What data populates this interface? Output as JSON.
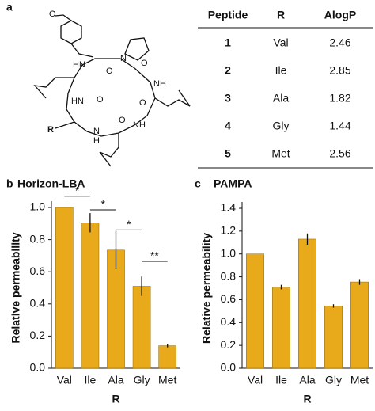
{
  "panels": [
    "a",
    "b",
    "c"
  ],
  "structure": {
    "labels": [
      "O",
      "HN",
      "N",
      "O",
      "O",
      "NH",
      "HN",
      "O",
      "O",
      "NH",
      "R",
      "N",
      "H",
      "O"
    ]
  },
  "table": {
    "header": [
      "Peptide",
      "R",
      "AlogP"
    ],
    "rows": [
      [
        1,
        "Val",
        2.46
      ],
      [
        2,
        "Ile",
        2.85
      ],
      [
        3,
        "Ala",
        1.82
      ],
      [
        4,
        "Gly",
        1.44
      ],
      [
        5,
        "Met",
        2.56
      ]
    ]
  },
  "chart_data": [
    {
      "type": "bar",
      "title": "Horizon-LBA",
      "xlabel": "R",
      "ylabel": "Relative permeability",
      "categories": [
        "Val",
        "Ile",
        "Ala",
        "Gly",
        "Met"
      ],
      "values": [
        1.0,
        0.905,
        0.735,
        0.51,
        0.14
      ],
      "errors": [
        0,
        0.06,
        0.12,
        0.06,
        0.01
      ],
      "color": "#e8a91b",
      "ylim": [
        0,
        1
      ],
      "yticks": [
        {
          "value": 0,
          "label": "0.0"
        },
        0.2,
        0.4,
        0.6,
        0.8,
        {
          "value": 1,
          "label": "1.0"
        }
      ],
      "annotations": [
        {
          "text": "*",
          "between": [
            "Val",
            "Ile"
          ],
          "y": 1.07
        },
        {
          "text": "*",
          "between": [
            "Ile",
            "Ala"
          ],
          "y": 0.985
        },
        {
          "text": "*",
          "between": [
            "Ala",
            "Gly"
          ],
          "y": 0.86
        },
        {
          "text": "**",
          "between": [
            "Gly",
            "Met"
          ],
          "y": 0.665
        }
      ]
    },
    {
      "type": "bar",
      "title": "PAMPA",
      "xlabel": "R",
      "ylabel": "Relative permeability",
      "categories": [
        "Val",
        "Ile",
        "Ala",
        "Gly",
        "Met"
      ],
      "values": [
        1.0,
        0.71,
        1.13,
        0.545,
        0.755
      ],
      "errors": [
        0,
        0.02,
        0.05,
        0.015,
        0.025
      ],
      "color": "#e8a91b",
      "ylim": [
        0,
        1.4
      ],
      "yticks": [
        {
          "value": 0,
          "label": "0.0"
        },
        0.2,
        0.4,
        0.6,
        0.8,
        {
          "value": 1,
          "label": "1.0"
        },
        1.2,
        1.4
      ]
    }
  ]
}
